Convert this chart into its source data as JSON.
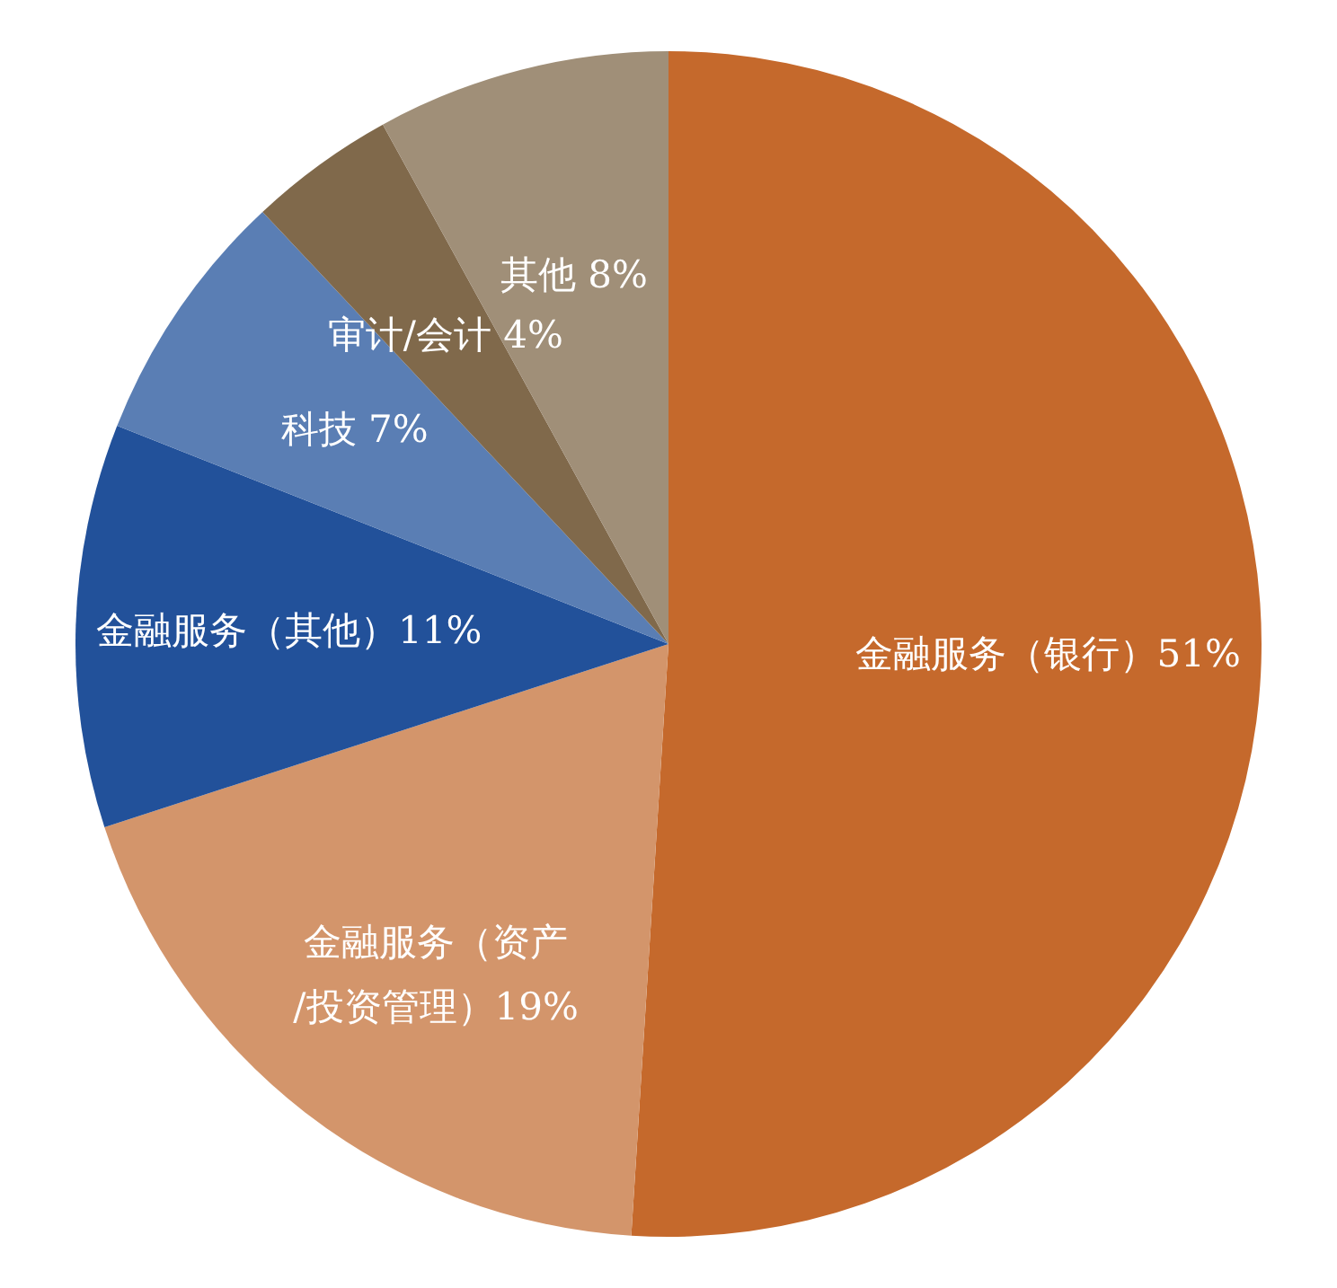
{
  "chart_data": {
    "type": "pie",
    "categories": [
      "金融服务（银行）51%",
      "金融服务（资产/投资管理）19%",
      "金融服务（其他）11%",
      "科技 7%",
      "审计/会计 4%",
      "其他 8%"
    ],
    "values": [
      51,
      19,
      11,
      7,
      4,
      8
    ],
    "colors": [
      "#c5692c",
      "#d3956b",
      "#22519a",
      "#5a7eb4",
      "#80694b",
      "#a08f78"
    ]
  }
}
